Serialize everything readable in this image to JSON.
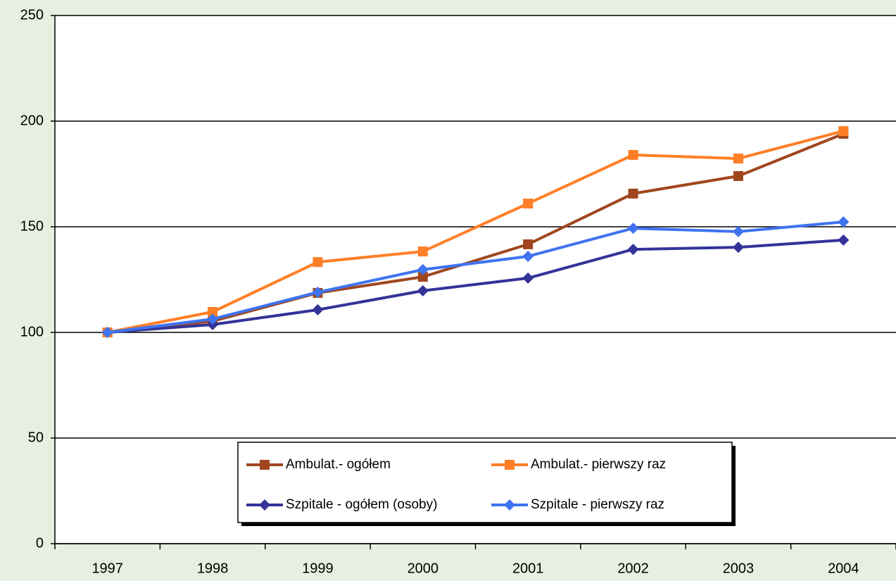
{
  "chart_data": {
    "type": "line",
    "categories": [
      "1997",
      "1998",
      "1999",
      "2000",
      "2001",
      "2002",
      "2003",
      "2004"
    ],
    "series": [
      {
        "name": "Ambulat.- ogółem",
        "color": "#a0461e",
        "marker": "square",
        "values": [
          100,
          105.3,
          118.7,
          126.3,
          141.7,
          165.7,
          174,
          194
        ]
      },
      {
        "name": "Ambulat.- pierwszy raz",
        "color": "#ff7f27",
        "marker": "square",
        "values": [
          100,
          109.7,
          133.3,
          138.3,
          161,
          184,
          182.3,
          195.3
        ]
      },
      {
        "name": "Szpitale - ogółem (osoby)",
        "color": "#333399",
        "marker": "diamond",
        "values": [
          100,
          103.7,
          110.7,
          119.7,
          125.7,
          139.3,
          140.3,
          143.7
        ]
      },
      {
        "name": "Szpitale - pierwszy raz",
        "color": "#3f73f0",
        "marker": "diamond",
        "values": [
          100,
          106.3,
          119,
          129.7,
          136,
          149.3,
          147.7,
          152.3
        ]
      }
    ],
    "ylim": [
      0,
      250
    ],
    "yticks": [
      0,
      50,
      100,
      150,
      200,
      250
    ],
    "grid": true,
    "legend": "lower center"
  }
}
